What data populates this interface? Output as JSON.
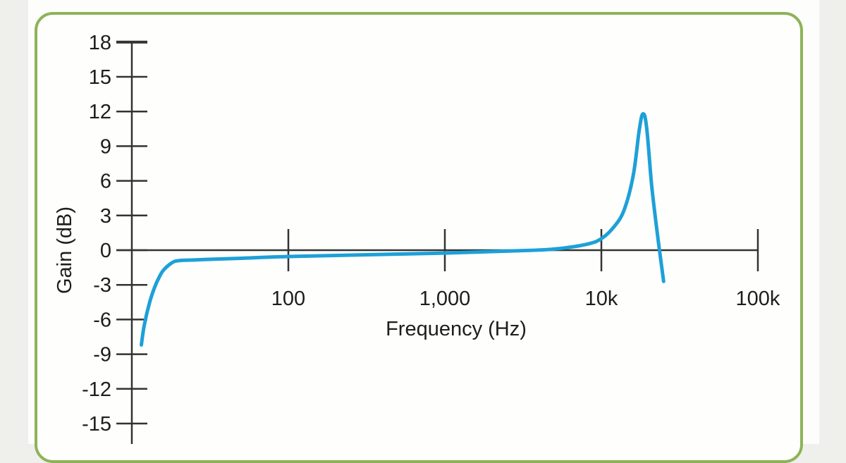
{
  "colors": {
    "frame": "#8db35a",
    "curve": "#1ea0d8",
    "axis": "#333333",
    "background": "#efefeb"
  },
  "chart_data": {
    "type": "line",
    "title": "",
    "xlabel": "Frequency (Hz)",
    "ylabel": "Gain (dB)",
    "xscale": "log",
    "xlim": [
      10,
      100000
    ],
    "ylim": [
      -15,
      18
    ],
    "x_ticks": [
      100,
      1000,
      10000,
      100000
    ],
    "x_tick_labels": [
      "100",
      "1,000",
      "10k",
      "100k"
    ],
    "y_ticks": [
      18,
      15,
      12,
      9,
      6,
      3,
      0,
      -3,
      -6,
      -9,
      -12,
      -15
    ],
    "y_tick_labels": [
      "18",
      "15",
      "12",
      "9",
      "6",
      "3",
      "0",
      "-3",
      "-6",
      "-9",
      "-12",
      "-15"
    ],
    "grid": false,
    "legend": null,
    "series": [
      {
        "name": "Gain",
        "x": [
          11.5,
          12,
          13,
          14,
          15,
          16,
          18,
          20,
          25,
          30,
          50,
          100,
          300,
          1000,
          3000,
          5000,
          8000,
          10000,
          12000,
          14000,
          16000,
          17500,
          18500,
          19500,
          21000,
          23000,
          25000
        ],
        "y": [
          -8.2,
          -6.5,
          -4.5,
          -3.2,
          -2.3,
          -1.7,
          -1.1,
          -0.9,
          -0.85,
          -0.8,
          -0.7,
          -0.55,
          -0.4,
          -0.25,
          -0.05,
          0.1,
          0.5,
          1.0,
          2.0,
          3.5,
          6.5,
          10.5,
          11.8,
          10.5,
          5.5,
          1.0,
          -2.7
        ]
      }
    ]
  }
}
